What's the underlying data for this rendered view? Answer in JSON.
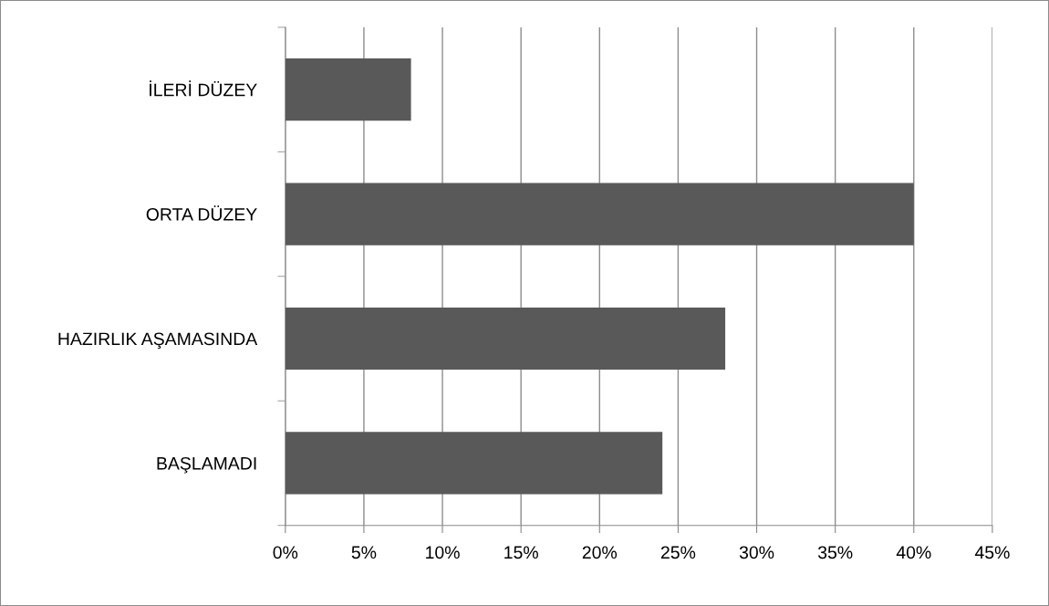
{
  "chart_data": {
    "type": "bar",
    "orientation": "horizontal",
    "categories": [
      "İLERİ DÜZEY",
      "ORTA DÜZEY",
      "HAZIRLIK AŞAMASINDA",
      "BAŞLAMADI"
    ],
    "values": [
      8,
      40,
      28,
      24
    ],
    "color": "#595959",
    "xlim": [
      0,
      45
    ],
    "xticks": [
      {
        "value": 0,
        "label": "0%"
      },
      {
        "value": 5,
        "label": "5%"
      },
      {
        "value": 10,
        "label": "10%"
      },
      {
        "value": 15,
        "label": "15%"
      },
      {
        "value": 20,
        "label": "20%"
      },
      {
        "value": 25,
        "label": "25%"
      },
      {
        "value": 30,
        "label": "30%"
      },
      {
        "value": 35,
        "label": "35%"
      },
      {
        "value": 40,
        "label": "40%"
      },
      {
        "value": 45,
        "label": "45%"
      }
    ],
    "grid": "x",
    "legend": false
  }
}
